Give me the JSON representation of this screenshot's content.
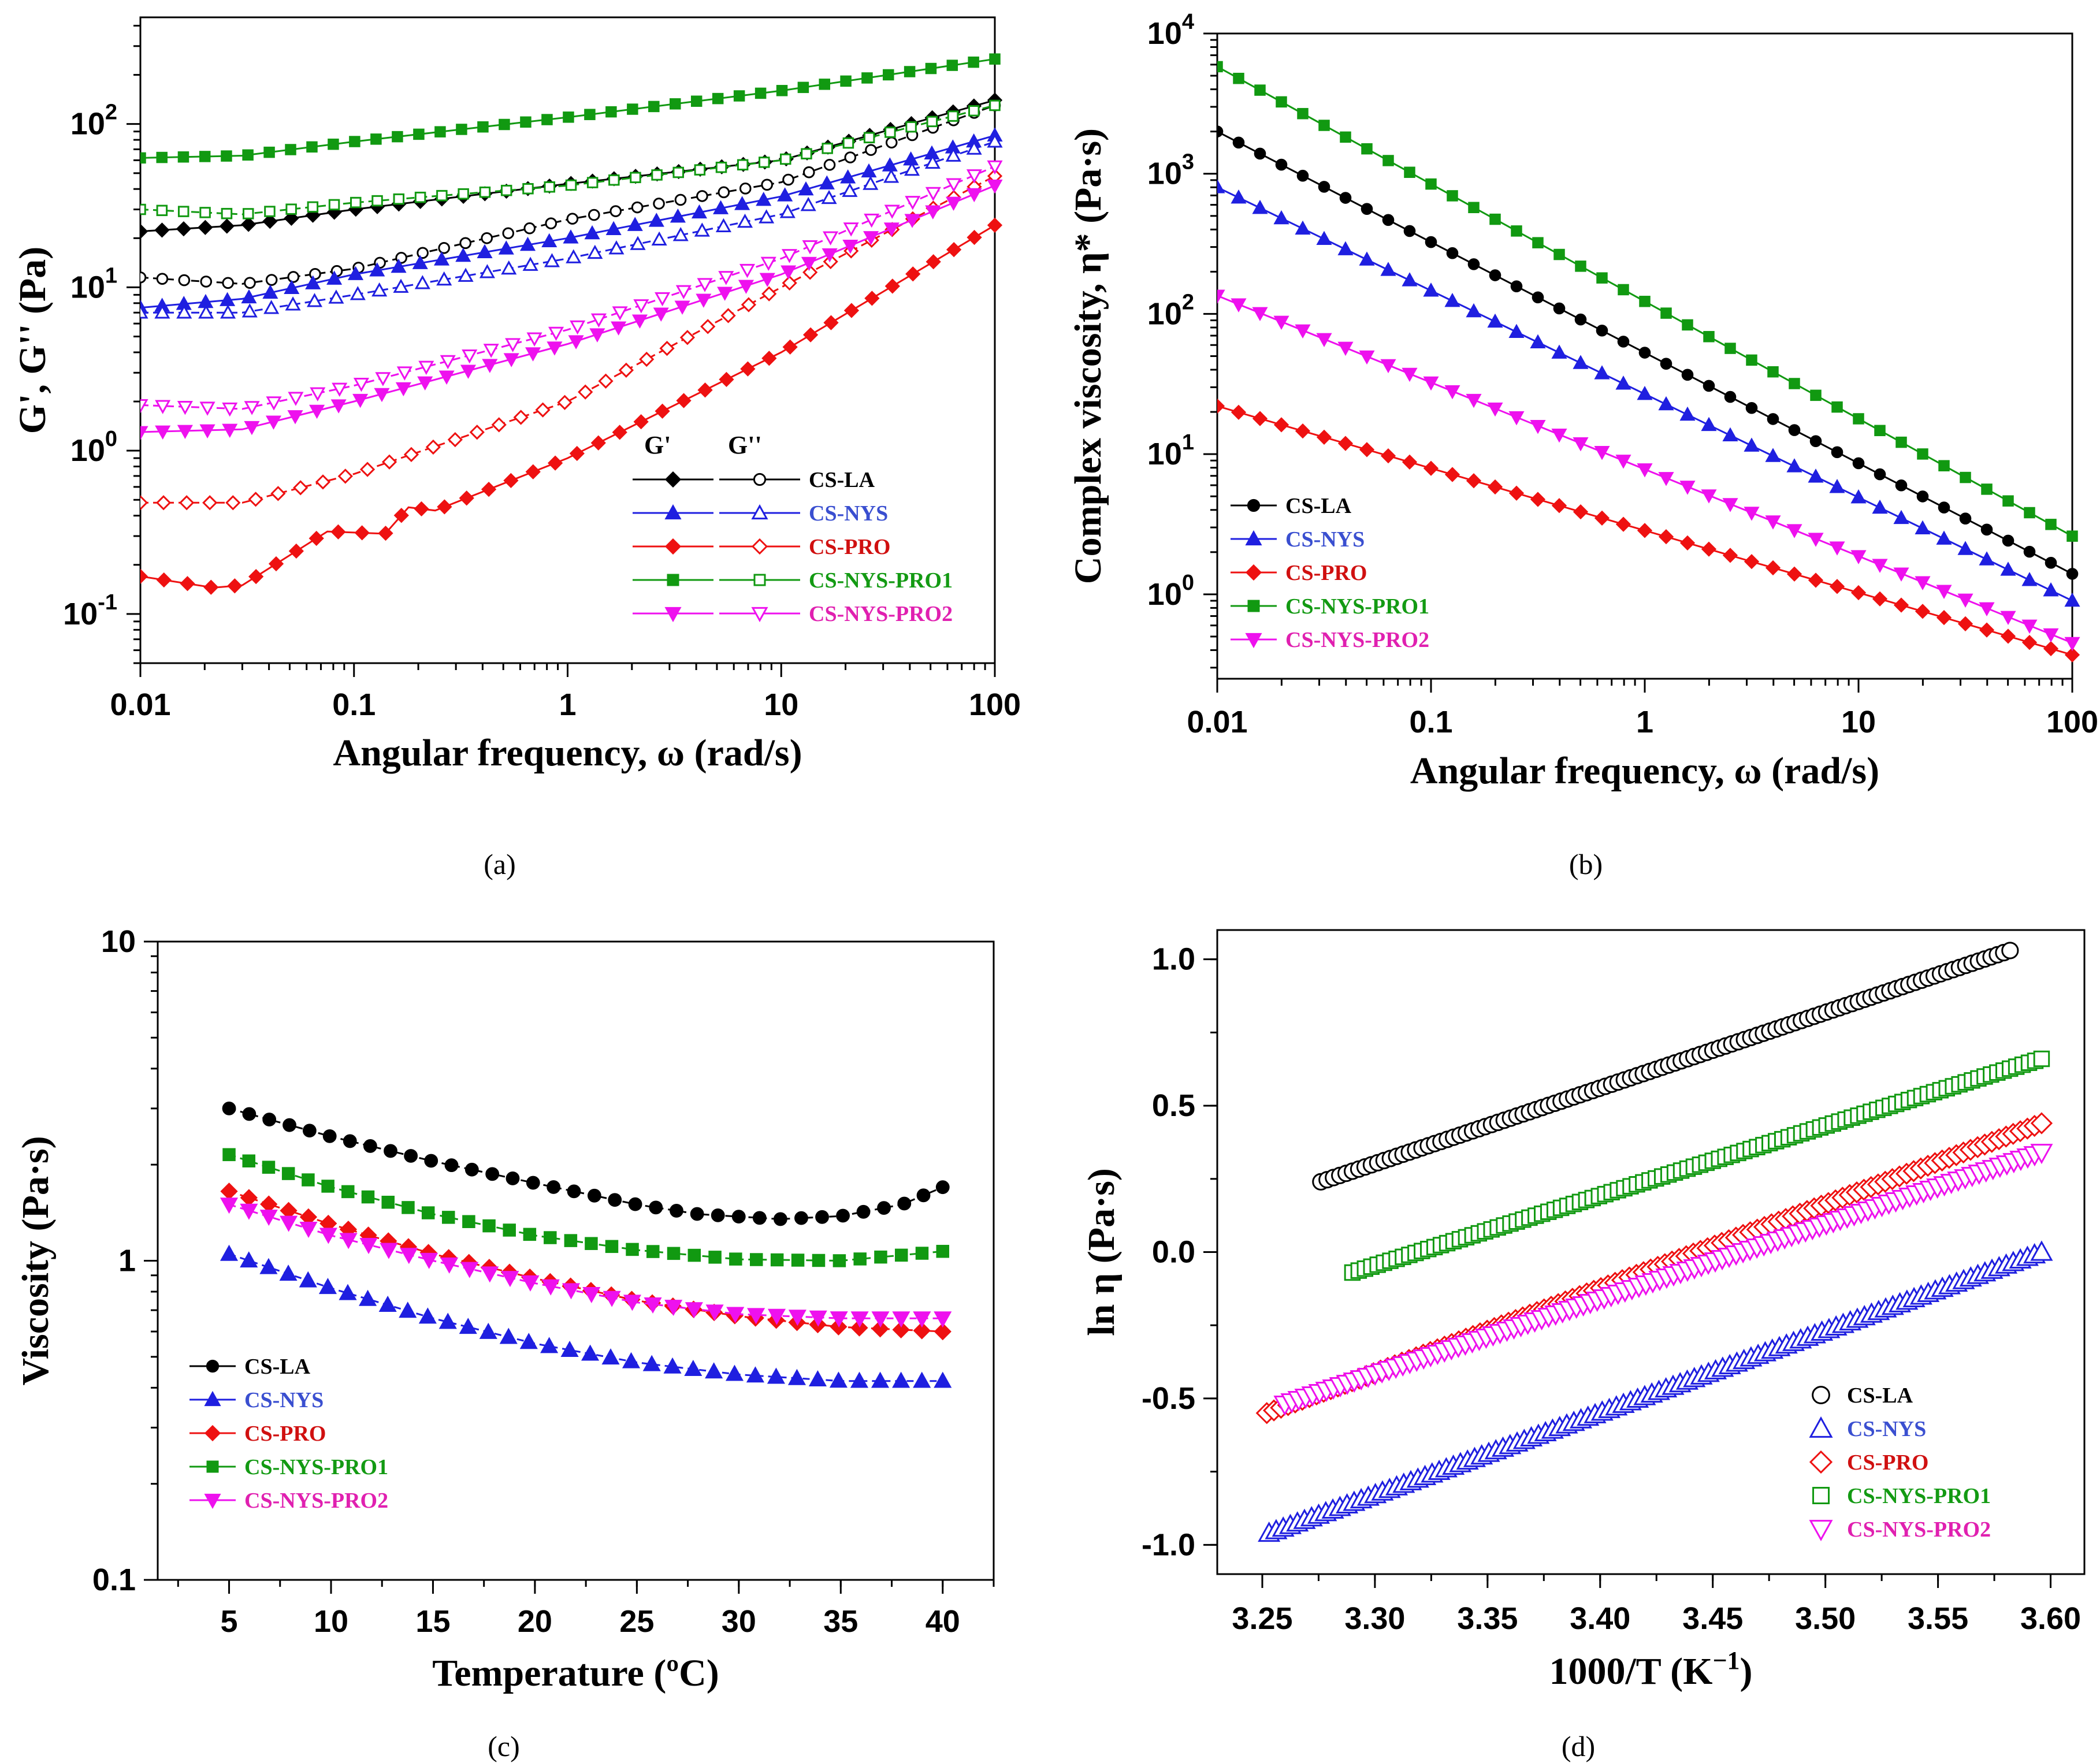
{
  "colors": {
    "CS-LA": "#000000",
    "CS-NYS": "#1f1fe0",
    "CS-PRO": "#ee1111",
    "CS-NYS-PRO1": "#119911",
    "CS-NYS-PRO2": "#ee11ee",
    "legend_text": {
      "CS-LA": "#000000",
      "CS-NYS": "#3a4fd0",
      "CS-PRO": "#d01010",
      "CS-NYS-PRO1": "#139a13",
      "CS-NYS-PRO2": "#e020b0"
    }
  },
  "chart_data": [
    {
      "id": "a",
      "panel_label": "(a)",
      "type": "line",
      "xscale": "log",
      "yscale": "log",
      "xlim": [
        0.01,
        100
      ],
      "ylim": [
        0.05,
        450
      ],
      "xlabel": "Angular frequency, ω (rad/s)",
      "ylabel": "G', G'' (Pa)",
      "xticks": [
        0.01,
        0.1,
        1,
        10,
        100
      ],
      "xtick_labels": [
        "0.01",
        "0.1",
        "1",
        "10",
        "100"
      ],
      "yticks": [
        0.1,
        1,
        10,
        100
      ],
      "ytick_labels": [
        [
          "10",
          "-1"
        ],
        [
          "10",
          "0"
        ],
        [
          "10",
          "1"
        ],
        [
          "10",
          "2"
        ]
      ],
      "legend_headers": [
        "G'",
        "G''"
      ],
      "legend_position": "bottom-right",
      "series": [
        {
          "name": "CS-LA",
          "modulus": "G'",
          "marker": "diamond",
          "filled": true,
          "x": [
            0.01,
            0.03,
            0.1,
            1,
            10,
            100
          ],
          "y": [
            22,
            24,
            30,
            43,
            60,
            140
          ]
        },
        {
          "name": "CS-LA",
          "modulus": "G''",
          "marker": "circle",
          "filled": false,
          "x": [
            0.01,
            0.03,
            0.1,
            1,
            10,
            100
          ],
          "y": [
            11.5,
            10.5,
            13,
            26,
            44,
            130
          ]
        },
        {
          "name": "CS-NYS",
          "modulus": "G'",
          "marker": "triangle-up",
          "filled": true,
          "x": [
            0.01,
            0.03,
            0.1,
            1,
            10,
            100
          ],
          "y": [
            7.5,
            8.5,
            12,
            20,
            36,
            85
          ]
        },
        {
          "name": "CS-NYS",
          "modulus": "G''",
          "marker": "triangle-up",
          "filled": false,
          "x": [
            0.01,
            0.03,
            0.1,
            1,
            10,
            100
          ],
          "y": [
            7,
            7,
            9,
            15,
            28,
            78
          ]
        },
        {
          "name": "CS-PRO",
          "modulus": "G'",
          "marker": "diamond",
          "filled": true,
          "x": [
            0.01,
            0.022,
            0.03,
            0.075,
            0.14,
            0.18,
            0.24,
            1,
            10,
            100
          ],
          "y": [
            0.17,
            0.145,
            0.15,
            0.32,
            0.31,
            0.45,
            0.43,
            0.9,
            4,
            24
          ]
        },
        {
          "name": "CS-PRO",
          "modulus": "G''",
          "marker": "diamond",
          "filled": false,
          "x": [
            0.01,
            0.03,
            0.1,
            1,
            10,
            100
          ],
          "y": [
            0.48,
            0.48,
            0.72,
            2,
            10,
            48
          ]
        },
        {
          "name": "CS-NYS-PRO1",
          "modulus": "G'",
          "marker": "square",
          "filled": true,
          "x": [
            0.01,
            0.03,
            0.1,
            1,
            10,
            100
          ],
          "y": [
            62,
            64,
            78,
            110,
            160,
            250
          ]
        },
        {
          "name": "CS-NYS-PRO1",
          "modulus": "G''",
          "marker": "square",
          "filled": false,
          "x": [
            0.01,
            0.03,
            0.1,
            1,
            10,
            100
          ],
          "y": [
            30,
            28,
            33,
            42,
            60,
            130
          ]
        },
        {
          "name": "CS-NYS-PRO2",
          "modulus": "G'",
          "marker": "triangle-down",
          "filled": true,
          "x": [
            0.01,
            0.03,
            0.1,
            1,
            10,
            100
          ],
          "y": [
            1.3,
            1.35,
            2,
            4.5,
            12,
            42
          ]
        },
        {
          "name": "CS-NYS-PRO2",
          "modulus": "G''",
          "marker": "triangle-down",
          "filled": false,
          "x": [
            0.01,
            0.03,
            0.1,
            1,
            10,
            100
          ],
          "y": [
            1.9,
            1.8,
            2.5,
            5.5,
            15,
            55
          ]
        }
      ]
    },
    {
      "id": "b",
      "panel_label": "(b)",
      "type": "line",
      "xscale": "log",
      "yscale": "log",
      "xlim": [
        0.01,
        100
      ],
      "ylim": [
        0.25,
        10000
      ],
      "xlabel": "Angular frequency, ω (rad/s)",
      "ylabel": "Complex viscosity, η* (Pa·s)",
      "xticks": [
        0.01,
        0.1,
        1,
        10,
        100
      ],
      "xtick_labels": [
        "0.01",
        "0.1",
        "1",
        "10",
        "100"
      ],
      "yticks": [
        1,
        10,
        100,
        1000,
        10000
      ],
      "ytick_labels": [
        [
          "10",
          "0"
        ],
        [
          "10",
          "1"
        ],
        [
          "10",
          "2"
        ],
        [
          "10",
          "3"
        ],
        [
          "10",
          "4"
        ]
      ],
      "legend_position": "bottom-left",
      "series": [
        {
          "name": "CS-LA",
          "marker": "circle",
          "filled": true,
          "x": [
            0.01,
            100
          ],
          "y": [
            2000,
            1.4
          ]
        },
        {
          "name": "CS-NYS",
          "marker": "triangle-up",
          "filled": true,
          "x": [
            0.01,
            100
          ],
          "y": [
            800,
            0.9
          ]
        },
        {
          "name": "CS-PRO",
          "marker": "diamond",
          "filled": true,
          "x": [
            0.01,
            100
          ],
          "y": [
            22,
            0.37
          ]
        },
        {
          "name": "CS-NYS-PRO1",
          "marker": "square",
          "filled": true,
          "x": [
            0.01,
            100
          ],
          "y": [
            5800,
            2.6
          ]
        },
        {
          "name": "CS-NYS-PRO2",
          "marker": "triangle-down",
          "filled": true,
          "x": [
            0.01,
            100
          ],
          "y": [
            135,
            0.45
          ]
        }
      ]
    },
    {
      "id": "c",
      "panel_label": "(c)",
      "type": "line",
      "xscale": "linear",
      "yscale": "log",
      "xlim": [
        1.5,
        42.5
      ],
      "ylim": [
        0.1,
        10
      ],
      "xlabel": "Temperature (ºC)",
      "ylabel": "Viscosity (Pa·s)",
      "xticks": [
        5,
        10,
        15,
        20,
        25,
        30,
        35,
        40
      ],
      "xtick_labels": [
        "5",
        "10",
        "15",
        "20",
        "25",
        "30",
        "35",
        "40"
      ],
      "yticks": [
        0.1,
        1,
        10
      ],
      "ytick_labels": [
        "0.1",
        "1",
        "10"
      ],
      "legend_position": "bottom-left",
      "series": [
        {
          "name": "CS-LA",
          "marker": "circle",
          "filled": true,
          "x": [
            5,
            10,
            15,
            20,
            25,
            28,
            32,
            35,
            38,
            40
          ],
          "y": [
            3.0,
            2.45,
            2.05,
            1.75,
            1.5,
            1.4,
            1.35,
            1.38,
            1.5,
            1.7
          ]
        },
        {
          "name": "CS-NYS",
          "marker": "triangle-up",
          "filled": true,
          "x": [
            5,
            10,
            15,
            20,
            25,
            30,
            35,
            40
          ],
          "y": [
            1.05,
            0.82,
            0.66,
            0.55,
            0.48,
            0.44,
            0.42,
            0.42
          ]
        },
        {
          "name": "CS-PRO",
          "marker": "diamond",
          "filled": true,
          "x": [
            5,
            10,
            15,
            20,
            25,
            30,
            35,
            40
          ],
          "y": [
            1.65,
            1.3,
            1.05,
            0.88,
            0.75,
            0.67,
            0.62,
            0.6
          ]
        },
        {
          "name": "CS-NYS-PRO1",
          "marker": "square",
          "filled": true,
          "x": [
            5,
            10,
            15,
            20,
            25,
            30,
            35,
            40
          ],
          "y": [
            2.15,
            1.7,
            1.4,
            1.2,
            1.08,
            1.01,
            1.0,
            1.07
          ]
        },
        {
          "name": "CS-NYS-PRO2",
          "marker": "triangle-down",
          "filled": true,
          "x": [
            5,
            10,
            15,
            20,
            25,
            30,
            35,
            40
          ],
          "y": [
            1.5,
            1.2,
            1.0,
            0.85,
            0.74,
            0.68,
            0.66,
            0.66
          ]
        }
      ]
    },
    {
      "id": "d",
      "panel_label": "(d)",
      "type": "scatter",
      "xscale": "linear",
      "yscale": "linear",
      "xlim": [
        3.23,
        3.615
      ],
      "ylim": [
        -1.1,
        1.1
      ],
      "xlabel": [
        "1000/T (K",
        "−1",
        ")"
      ],
      "ylabel": "ln η (Pa·s)",
      "xticks": [
        3.25,
        3.3,
        3.35,
        3.4,
        3.45,
        3.5,
        3.55,
        3.6
      ],
      "xtick_labels": [
        "3.25",
        "3.30",
        "3.35",
        "3.40",
        "3.45",
        "3.50",
        "3.55",
        "3.60"
      ],
      "yticks": [
        -1.0,
        -0.5,
        0.0,
        0.5,
        1.0
      ],
      "ytick_labels": [
        "-1.0",
        "-0.5",
        "0.0",
        "0.5",
        "1.0"
      ],
      "legend_position": "bottom-right",
      "series": [
        {
          "name": "CS-LA",
          "marker": "circle",
          "filled": false,
          "x": [
            3.276,
            3.582
          ],
          "y": [
            0.24,
            1.03
          ]
        },
        {
          "name": "CS-NYS",
          "marker": "triangle-up",
          "filled": false,
          "x": [
            3.253,
            3.596
          ],
          "y": [
            -0.96,
            0.0
          ]
        },
        {
          "name": "CS-PRO",
          "marker": "diamond",
          "filled": false,
          "x": [
            3.252,
            3.596
          ],
          "y": [
            -0.55,
            0.44
          ]
        },
        {
          "name": "CS-NYS-PRO1",
          "marker": "square",
          "filled": false,
          "x": [
            3.29,
            3.596
          ],
          "y": [
            -0.07,
            0.66
          ]
        },
        {
          "name": "CS-NYS-PRO2",
          "marker": "triangle-down",
          "filled": false,
          "x": [
            3.26,
            3.596
          ],
          "y": [
            -0.52,
            0.34
          ]
        }
      ]
    }
  ]
}
